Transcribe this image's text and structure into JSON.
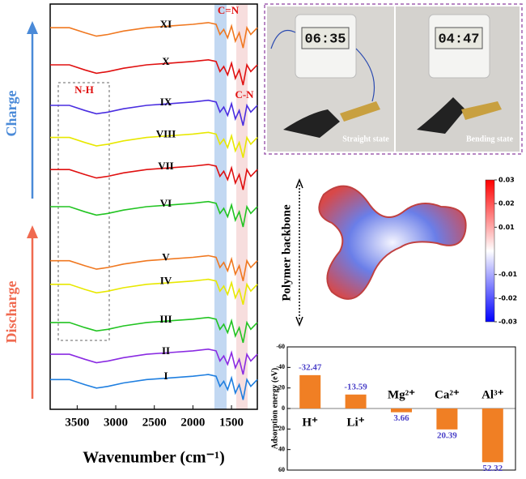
{
  "chart_data": [
    {
      "type": "line",
      "xlabel": "Wavenumber (cm⁻¹)",
      "x": [
        3850,
        3600,
        3400,
        3250,
        3100,
        2900,
        2600,
        2300,
        2000,
        1800,
        1700,
        1650,
        1600,
        1550,
        1500,
        1450,
        1400,
        1350,
        1300,
        1250,
        1165
      ],
      "xlim": [
        3850,
        1165
      ],
      "xticks": [
        3500,
        3000,
        2500,
        2000,
        1500
      ],
      "ylim": [
        0,
        12
      ],
      "annotations": [
        "C=N",
        "C-N",
        "N-H",
        "Charge",
        "Discharge"
      ],
      "series": [
        {
          "name": "I",
          "color": "#1f7fe0",
          "values": [
            0.88,
            0.88,
            0.73,
            0.63,
            0.68,
            0.78,
            0.88,
            0.93,
            0.98,
            1.03,
            0.98,
            0.68,
            0.83,
            0.58,
            0.93,
            0.48,
            0.73,
            0.28,
            0.88,
            0.68,
            0.88
          ]
        },
        {
          "name": "II",
          "color": "#8a2be2",
          "values": [
            1.63,
            1.63,
            1.48,
            1.38,
            1.43,
            1.53,
            1.63,
            1.68,
            1.73,
            1.78,
            1.73,
            1.43,
            1.58,
            1.33,
            1.68,
            1.23,
            1.48,
            1.03,
            1.63,
            1.43,
            1.63
          ]
        },
        {
          "name": "III",
          "color": "#22c422",
          "values": [
            2.57,
            2.57,
            2.42,
            2.32,
            2.37,
            2.47,
            2.57,
            2.62,
            2.67,
            2.72,
            2.67,
            2.37,
            2.52,
            2.27,
            2.62,
            2.17,
            2.42,
            1.97,
            2.57,
            2.37,
            2.57
          ]
        },
        {
          "name": "IV",
          "color": "#e8e800",
          "values": [
            3.7,
            3.7,
            3.55,
            3.45,
            3.5,
            3.6,
            3.7,
            3.75,
            3.8,
            3.85,
            3.8,
            3.5,
            3.65,
            3.4,
            3.75,
            3.3,
            3.55,
            3.1,
            3.7,
            3.5,
            3.7
          ]
        },
        {
          "name": "V",
          "color": "#f07820",
          "values": [
            4.4,
            4.4,
            4.25,
            4.15,
            4.2,
            4.3,
            4.4,
            4.45,
            4.5,
            4.55,
            4.5,
            4.2,
            4.35,
            4.1,
            4.45,
            4,
            4.25,
            3.8,
            4.4,
            4.2,
            4.4
          ]
        },
        {
          "name": "VI",
          "color": "#22c422",
          "values": [
            6,
            6,
            5.85,
            5.75,
            5.8,
            5.9,
            6,
            6.05,
            6.1,
            6.15,
            6.1,
            5.8,
            5.95,
            5.7,
            6.05,
            5.6,
            5.85,
            5.4,
            6,
            5.8,
            6
          ]
        },
        {
          "name": "VII",
          "color": "#e01010",
          "values": [
            7.1,
            7.1,
            6.95,
            6.85,
            6.9,
            7,
            7.1,
            7.15,
            7.2,
            7.25,
            7.2,
            6.9,
            7.05,
            6.8,
            7.15,
            6.7,
            6.95,
            6.5,
            7.1,
            6.9,
            7.1
          ]
        },
        {
          "name": "VIII",
          "color": "#e8e800",
          "values": [
            8.05,
            8.05,
            7.9,
            7.8,
            7.85,
            7.95,
            8.05,
            8.1,
            8.15,
            8.2,
            8.15,
            7.85,
            8,
            7.75,
            8.1,
            7.65,
            7.9,
            7.45,
            8.05,
            7.85,
            8.05
          ]
        },
        {
          "name": "IX",
          "color": "#4a2ee0",
          "values": [
            9,
            9,
            8.85,
            8.75,
            8.8,
            8.9,
            9,
            9.05,
            9.1,
            9.15,
            9.1,
            8.8,
            8.95,
            8.7,
            9.05,
            8.6,
            8.85,
            8.4,
            9,
            8.8,
            9
          ]
        },
        {
          "name": "X",
          "color": "#e01010",
          "values": [
            10.2,
            10.2,
            10.05,
            9.95,
            10,
            10.1,
            10.2,
            10.25,
            10.3,
            10.35,
            10.3,
            10,
            10.15,
            9.9,
            10.25,
            9.8,
            10.05,
            9.6,
            10.2,
            10,
            10.2
          ]
        },
        {
          "name": "XI",
          "color": "#f07820",
          "values": [
            11.3,
            11.3,
            11.15,
            11.05,
            11.1,
            11.2,
            11.3,
            11.35,
            11.4,
            11.45,
            11.4,
            11.1,
            11.25,
            11,
            11.35,
            10.9,
            11.15,
            10.7,
            11.3,
            11.1,
            11.3
          ]
        }
      ]
    },
    {
      "type": "bar",
      "ylabel": "Adsorption energy (eV)",
      "categories": [
        "H⁺",
        "Li⁺",
        "Mg²⁺",
        "Ca²⁺",
        "Al³⁺"
      ],
      "values": [
        -32.47,
        -13.59,
        3.66,
        20.39,
        52.32
      ],
      "color": "#f07f24",
      "label_color": "#4a40c8",
      "ylim": [
        60,
        -60
      ],
      "yticks": [
        -60,
        -40,
        -20,
        0,
        20,
        40,
        60
      ]
    },
    {
      "type": "colorbar",
      "ylim": [
        -0.03,
        0.03
      ],
      "yticks": [
        0.03,
        0.02,
        0.01,
        -0.01,
        -0.02,
        -0.03
      ],
      "colors": [
        "#0000ff",
        "#ffffff",
        "#ff0000"
      ]
    }
  ],
  "esp": {
    "label": "Polymer backbone"
  },
  "photo": {
    "timers": [
      "06:35",
      "04:47"
    ],
    "captions": [
      "Straight state",
      "Bending state"
    ]
  }
}
